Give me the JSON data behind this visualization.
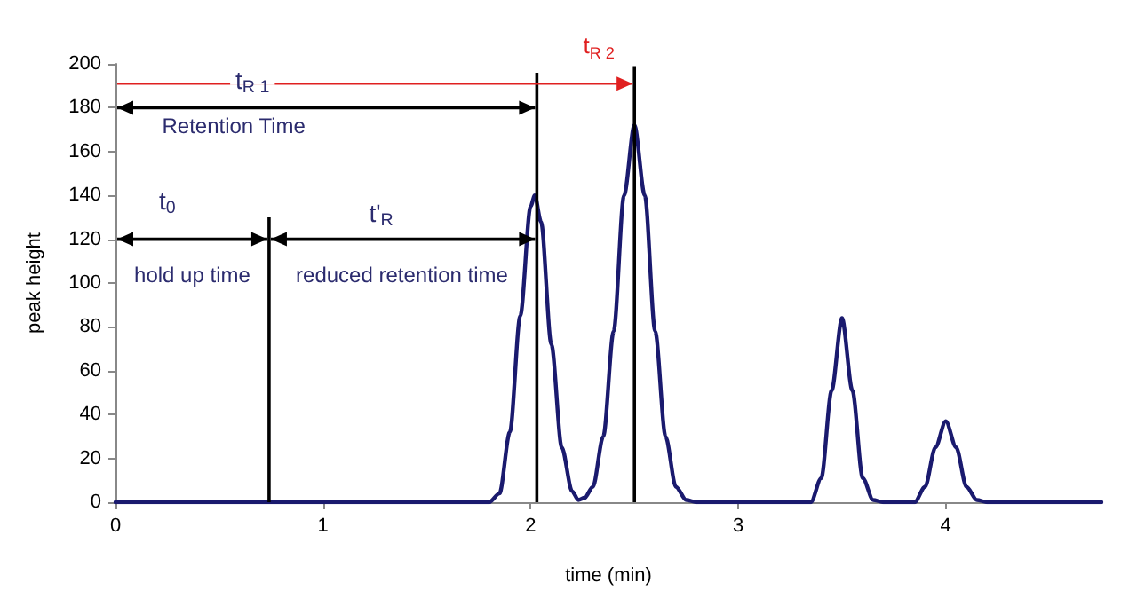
{
  "chart_data": {
    "type": "line",
    "xlabel": "time (min)",
    "ylabel": "peak height",
    "x": [
      0,
      1.8,
      1.85,
      1.9,
      1.95,
      2.0,
      2.02,
      2.05,
      2.1,
      2.15,
      2.2,
      2.23,
      2.26,
      2.3,
      2.35,
      2.4,
      2.45,
      2.5,
      2.55,
      2.6,
      2.65,
      2.7,
      2.75,
      2.8,
      3.35,
      3.4,
      3.45,
      3.5,
      3.55,
      3.6,
      3.65,
      3.7,
      3.85,
      3.9,
      3.95,
      4.0,
      4.05,
      4.1,
      4.15,
      4.2,
      4.75
    ],
    "series": [
      {
        "color": "#1a1a6e",
        "values": [
          0,
          0,
          4,
          32,
          85,
          135,
          140,
          128,
          72,
          25,
          5,
          1,
          2,
          7,
          30,
          78,
          140,
          172,
          140,
          78,
          30,
          7,
          1,
          0,
          0,
          11,
          51,
          84,
          51,
          11,
          1,
          0,
          0,
          7,
          25,
          37,
          25,
          7,
          1,
          0,
          0
        ]
      }
    ],
    "xlim": [
      0,
      4.75
    ],
    "xticks": [
      0,
      1,
      2,
      3,
      4
    ],
    "ylim": [
      0,
      200
    ],
    "yticks": [
      0,
      20,
      40,
      60,
      80,
      100,
      120,
      140,
      160,
      180,
      200
    ],
    "grid": false,
    "marker": "none",
    "line_style": "solid",
    "ref_lines": [
      {
        "axis": "x",
        "value": 0.74,
        "color": "#000000"
      },
      {
        "axis": "x",
        "value": 2.03,
        "color": "#000000"
      },
      {
        "axis": "x",
        "value": 2.5,
        "color": "#000000"
      }
    ],
    "annotations": [
      "t$_{0}$",
      "hold up time",
      "t'$_{R}$",
      "reduced retention time",
      "Retention Time",
      "t$_{R 1}$",
      "t$_{R 2}$"
    ]
  }
}
